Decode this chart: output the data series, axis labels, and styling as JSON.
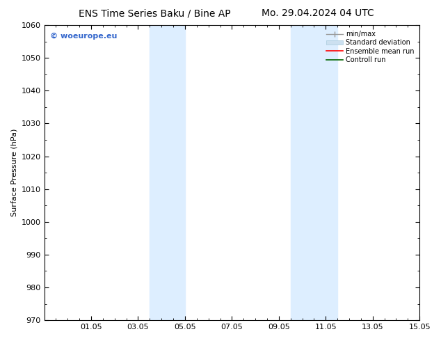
{
  "title_left": "ENS Time Series Baku / Bine AP",
  "title_right": "Mo. 29.04.2024 04 UTC",
  "ylabel": "Surface Pressure (hPa)",
  "ylim": [
    970,
    1060
  ],
  "yticks": [
    970,
    980,
    990,
    1000,
    1010,
    1020,
    1030,
    1040,
    1050,
    1060
  ],
  "xtick_labels": [
    "01.05",
    "03.05",
    "05.05",
    "07.05",
    "09.05",
    "11.05",
    "13.05",
    "15.05"
  ],
  "xtick_positions": [
    2,
    4,
    6,
    8,
    10,
    12,
    14,
    16
  ],
  "xlim": [
    0,
    16
  ],
  "shaded_regions": [
    {
      "xmin": 4.5,
      "xmax": 6.0
    },
    {
      "xmin": 10.5,
      "xmax": 12.5
    }
  ],
  "shade_color": "#ddeeff",
  "watermark_text": "© woeurope.eu",
  "watermark_color": "#3366cc",
  "background_color": "#ffffff",
  "title_fontsize": 10,
  "axis_label_fontsize": 8,
  "tick_fontsize": 8,
  "legend_fontsize": 7
}
